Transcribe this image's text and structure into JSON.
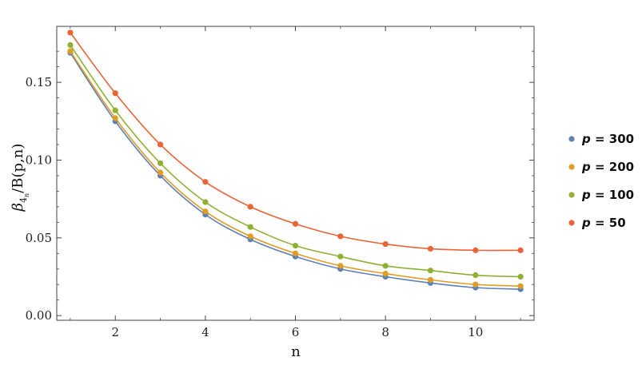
{
  "chart_data": {
    "type": "line",
    "title": "",
    "xlabel": "n",
    "ylabel": "β4n/B(p,n)",
    "ylabel_parts": {
      "symbol": "β",
      "sub": "4",
      "subsub": "n",
      "rest": "/B(p,n)"
    },
    "xlim": [
      0.7,
      11.3
    ],
    "ylim": [
      -0.003,
      0.186
    ],
    "x_ticks": [
      2,
      4,
      6,
      8,
      10
    ],
    "x_tick_labels": [
      "2",
      "4",
      "6",
      "8",
      "10"
    ],
    "y_ticks": [
      0,
      0.05,
      0.1,
      0.15
    ],
    "y_tick_labels": [
      "0.00",
      "0.05",
      "0.10",
      "0.15"
    ],
    "grid": false,
    "legend_position": "right",
    "x": [
      1,
      2,
      3,
      4,
      5,
      6,
      7,
      8,
      9,
      10,
      11
    ],
    "series": [
      {
        "name": "p = 300",
        "name_var": "p",
        "name_value": "300",
        "color": "#5e81b5",
        "values": [
          0.169,
          0.125,
          0.09,
          0.065,
          0.049,
          0.038,
          0.03,
          0.025,
          0.021,
          0.018,
          0.017
        ]
      },
      {
        "name": "p = 200",
        "name_var": "p",
        "name_value": "200",
        "color": "#e19c24",
        "values": [
          0.17,
          0.127,
          0.092,
          0.067,
          0.051,
          0.04,
          0.032,
          0.027,
          0.023,
          0.02,
          0.019
        ]
      },
      {
        "name": "p = 100",
        "name_var": "p",
        "name_value": "100",
        "color": "#8fb032",
        "values": [
          0.174,
          0.132,
          0.098,
          0.073,
          0.057,
          0.045,
          0.038,
          0.032,
          0.029,
          0.026,
          0.025
        ]
      },
      {
        "name": "p = 50",
        "name_var": "p",
        "name_value": "50",
        "color": "#eb6235",
        "values": [
          0.182,
          0.143,
          0.11,
          0.086,
          0.07,
          0.059,
          0.051,
          0.046,
          0.043,
          0.042,
          0.042
        ]
      }
    ]
  }
}
